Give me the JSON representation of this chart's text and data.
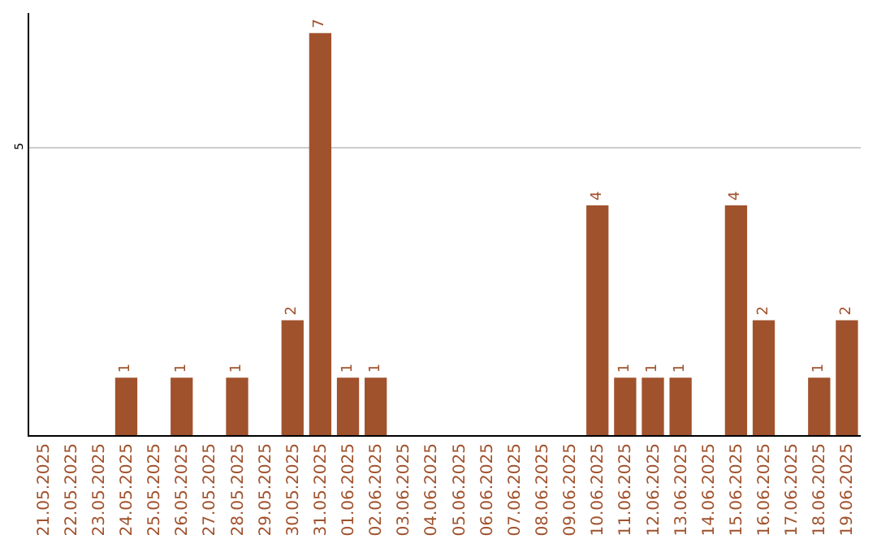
{
  "chart_data": {
    "type": "bar",
    "categories": [
      "21.05.2025",
      "22.05.2025",
      "23.05.2025",
      "24.05.2025",
      "25.05.2025",
      "26.05.2025",
      "27.05.2025",
      "28.05.2025",
      "29.05.2025",
      "30.05.2025",
      "31.05.2025",
      "01.06.2025",
      "02.06.2025",
      "03.06.2025",
      "04.06.2025",
      "05.06.2025",
      "06.06.2025",
      "07.06.2025",
      "08.06.2025",
      "09.06.2025",
      "10.06.2025",
      "11.06.2025",
      "12.06.2025",
      "13.06.2025",
      "14.06.2025",
      "15.06.2025",
      "16.06.2025",
      "17.06.2025",
      "18.06.2025",
      "19.06.2025"
    ],
    "values": [
      0,
      0,
      0,
      1,
      0,
      1,
      0,
      1,
      0,
      2,
      7,
      1,
      1,
      0,
      0,
      0,
      0,
      0,
      0,
      0,
      4,
      1,
      1,
      1,
      0,
      4,
      2,
      0,
      1,
      2
    ],
    "value_labels": [
      null,
      null,
      null,
      "1",
      null,
      "1",
      null,
      "1",
      null,
      "2",
      "7",
      "1",
      "1",
      null,
      null,
      null,
      null,
      null,
      null,
      null,
      "4",
      "1",
      "1",
      "1",
      null,
      "4",
      "2",
      null,
      "1",
      "2"
    ],
    "color": "#a0522d",
    "ylim": [
      0,
      7.35
    ],
    "yticks": [
      5
    ],
    "grid": "y"
  }
}
